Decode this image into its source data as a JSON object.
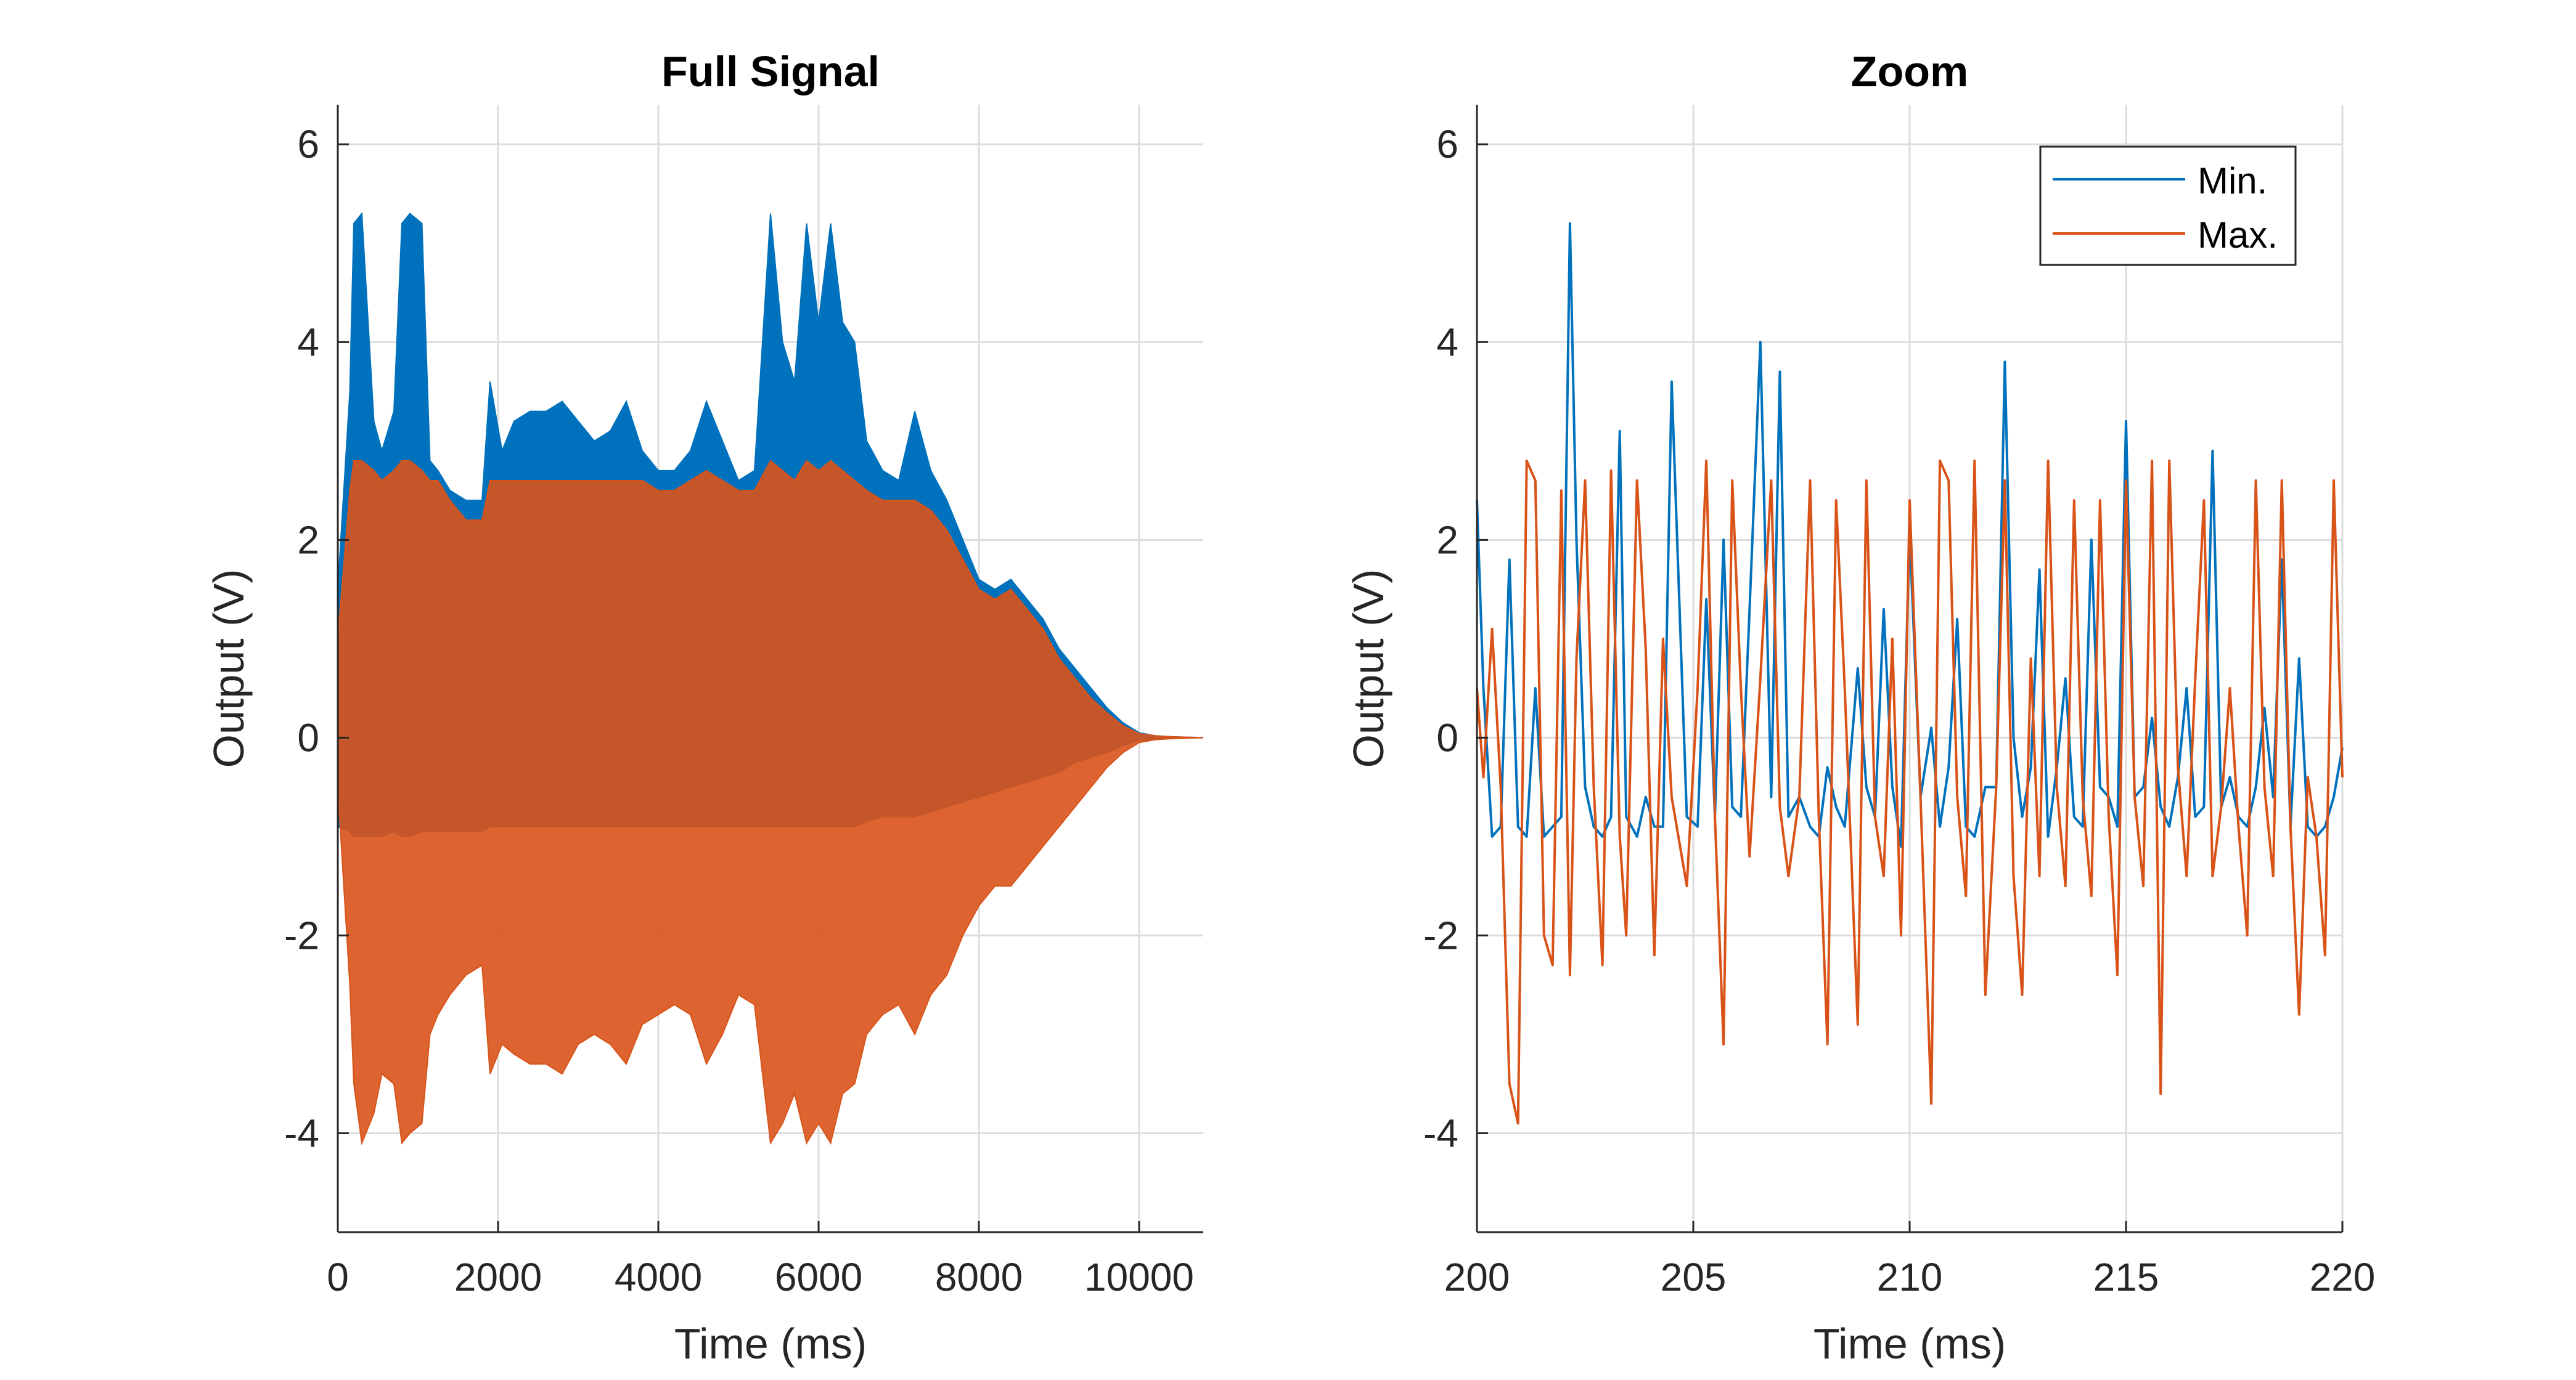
{
  "colors": {
    "series_min": "#0072BD",
    "series_max": "#D95319",
    "grid": "#dcdcdc",
    "axis": "#262626"
  },
  "chart_data": [
    {
      "type": "line",
      "title": "Full Signal",
      "xlabel": "Time (ms)",
      "ylabel": "Output (V)",
      "xlim": [
        0,
        10800
      ],
      "ylim": [
        -5,
        6.4
      ],
      "xticks": [
        0,
        2000,
        4000,
        6000,
        8000,
        10000
      ],
      "xtick_labels": [
        "0",
        "2000",
        "4000",
        "6000",
        "8000",
        "10000"
      ],
      "yticks": [
        -4,
        -2,
        0,
        2,
        4,
        6
      ],
      "ytick_labels": [
        "-4",
        "-2",
        "0",
        "2",
        "4",
        "6"
      ],
      "grid": true,
      "legend": "none",
      "series": [
        {
          "color": "#0072BD",
          "x": [
            0,
            150,
            200,
            300,
            450,
            550,
            700,
            800,
            900,
            1050,
            1150,
            1250,
            1400,
            1600,
            1800,
            1900,
            2050,
            2200,
            2400,
            2600,
            2800,
            3000,
            3200,
            3400,
            3600,
            3800,
            4000,
            4200,
            4400,
            4600,
            4800,
            5000,
            5200,
            5400,
            5550,
            5700,
            5850,
            6000,
            6150,
            6300,
            6450,
            6600,
            6800,
            7000,
            7200,
            7400,
            7600,
            7800,
            8000,
            8200,
            8400,
            8600,
            8800,
            9000,
            9200,
            9400,
            9600,
            9800,
            10000,
            10200,
            10400,
            10800
          ],
          "upper": [
            1.5,
            3.5,
            5.2,
            5.3,
            3.2,
            2.9,
            3.3,
            5.2,
            5.3,
            5.2,
            2.8,
            2.7,
            2.5,
            2.4,
            2.4,
            3.6,
            2.9,
            3.2,
            3.3,
            3.3,
            3.4,
            3.2,
            3.0,
            3.1,
            3.4,
            2.9,
            2.7,
            2.7,
            2.9,
            3.4,
            3.0,
            2.6,
            2.7,
            5.3,
            4.0,
            3.6,
            5.2,
            4.2,
            5.2,
            4.2,
            4.0,
            3.0,
            2.7,
            2.6,
            3.3,
            2.7,
            2.4,
            2.0,
            1.6,
            1.5,
            1.6,
            1.4,
            1.2,
            0.9,
            0.7,
            0.5,
            0.3,
            0.15,
            0.05,
            0.02,
            0.01,
            0.0
          ],
          "lower": [
            -0.9,
            -0.95,
            -1.0,
            -1.0,
            -1.0,
            -1.0,
            -0.95,
            -1.0,
            -1.0,
            -0.95,
            -0.95,
            -0.95,
            -0.95,
            -0.95,
            -0.95,
            -0.9,
            -0.9,
            -0.9,
            -0.9,
            -0.9,
            -0.9,
            -0.9,
            -0.9,
            -0.9,
            -0.9,
            -0.9,
            -0.9,
            -0.9,
            -0.9,
            -0.9,
            -0.9,
            -0.9,
            -0.9,
            -0.9,
            -0.9,
            -0.9,
            -0.9,
            -0.9,
            -0.9,
            -0.9,
            -0.9,
            -0.85,
            -0.8,
            -0.8,
            -0.8,
            -0.75,
            -0.7,
            -0.65,
            -0.6,
            -0.55,
            -0.5,
            -0.45,
            -0.4,
            -0.35,
            -0.25,
            -0.2,
            -0.15,
            -0.08,
            -0.03,
            -0.01,
            0.0,
            0.0
          ]
        },
        {
          "color": "#D95319",
          "x": [
            0,
            150,
            200,
            300,
            450,
            550,
            700,
            800,
            900,
            1050,
            1150,
            1250,
            1400,
            1600,
            1800,
            1900,
            2050,
            2200,
            2400,
            2600,
            2800,
            3000,
            3200,
            3400,
            3600,
            3800,
            4000,
            4200,
            4400,
            4600,
            4800,
            5000,
            5200,
            5400,
            5550,
            5700,
            5850,
            6000,
            6150,
            6300,
            6450,
            6600,
            6800,
            7000,
            7200,
            7400,
            7600,
            7800,
            8000,
            8200,
            8400,
            8600,
            8800,
            9000,
            9200,
            9400,
            9600,
            9800,
            10000,
            10200,
            10400,
            10800
          ],
          "upper": [
            1.0,
            2.5,
            2.8,
            2.8,
            2.7,
            2.6,
            2.7,
            2.8,
            2.8,
            2.7,
            2.6,
            2.6,
            2.4,
            2.2,
            2.2,
            2.6,
            2.6,
            2.6,
            2.6,
            2.6,
            2.6,
            2.6,
            2.6,
            2.6,
            2.6,
            2.6,
            2.5,
            2.5,
            2.6,
            2.7,
            2.6,
            2.5,
            2.5,
            2.8,
            2.7,
            2.6,
            2.8,
            2.7,
            2.8,
            2.7,
            2.6,
            2.5,
            2.4,
            2.4,
            2.4,
            2.3,
            2.1,
            1.8,
            1.5,
            1.4,
            1.5,
            1.3,
            1.1,
            0.8,
            0.6,
            0.4,
            0.25,
            0.12,
            0.04,
            0.02,
            0.01,
            0.0
          ],
          "lower": [
            -0.5,
            -2.5,
            -3.5,
            -4.1,
            -3.8,
            -3.4,
            -3.5,
            -4.1,
            -4.0,
            -3.9,
            -3.0,
            -2.8,
            -2.6,
            -2.4,
            -2.3,
            -3.4,
            -3.1,
            -3.2,
            -3.3,
            -3.3,
            -3.4,
            -3.1,
            -3.0,
            -3.1,
            -3.3,
            -2.9,
            -2.8,
            -2.7,
            -2.8,
            -3.3,
            -3.0,
            -2.6,
            -2.7,
            -4.1,
            -3.9,
            -3.6,
            -4.1,
            -3.9,
            -4.1,
            -3.6,
            -3.5,
            -3.0,
            -2.8,
            -2.7,
            -3.0,
            -2.6,
            -2.4,
            -2.0,
            -1.7,
            -1.5,
            -1.5,
            -1.3,
            -1.1,
            -0.9,
            -0.7,
            -0.5,
            -0.3,
            -0.15,
            -0.05,
            -0.02,
            -0.01,
            0.0
          ]
        }
      ]
    },
    {
      "type": "line",
      "title": "Zoom",
      "xlabel": "Time (ms)",
      "ylabel": "Output (V)",
      "xlim": [
        200,
        220
      ],
      "ylim": [
        -5,
        6.4
      ],
      "xticks": [
        200,
        205,
        210,
        215,
        220
      ],
      "xtick_labels": [
        "200",
        "205",
        "210",
        "215",
        "220"
      ],
      "yticks": [
        -4,
        -2,
        0,
        2,
        4,
        6
      ],
      "ytick_labels": [
        "-4",
        "-2",
        "0",
        "2",
        "4",
        "6"
      ],
      "grid": true,
      "legend": "top-right",
      "series": [
        {
          "name": "Min.",
          "color": "#0072BD",
          "x": [
            200.0,
            200.15,
            200.35,
            200.55,
            200.75,
            200.95,
            201.15,
            201.35,
            201.55,
            201.75,
            201.95,
            202.15,
            202.3,
            202.5,
            202.7,
            202.9,
            203.1,
            203.3,
            203.45,
            203.7,
            203.9,
            204.1,
            204.3,
            204.5,
            204.85,
            205.1,
            205.3,
            205.5,
            205.7,
            205.9,
            206.1,
            206.3,
            206.55,
            206.8,
            207.0,
            207.2,
            207.45,
            207.7,
            207.9,
            208.1,
            208.3,
            208.5,
            208.8,
            209.0,
            209.2,
            209.4,
            209.6,
            209.8,
            210.0,
            210.25,
            210.5,
            210.7,
            210.9,
            211.1,
            211.3,
            211.5,
            211.75,
            212.0,
            212.2,
            212.4,
            212.6,
            212.8,
            213.0,
            213.2,
            213.4,
            213.6,
            213.8,
            214.0,
            214.2,
            214.4,
            214.6,
            214.8,
            215.0,
            215.2,
            215.4,
            215.6,
            215.8,
            216.0,
            216.2,
            216.4,
            216.6,
            216.8,
            217.0,
            217.2,
            217.4,
            217.6,
            217.8,
            218.0,
            218.2,
            218.4,
            218.6,
            218.8,
            219.0,
            219.2,
            219.4,
            219.6,
            219.8,
            220.0
          ],
          "y": [
            2.4,
            0.5,
            -1.0,
            -0.9,
            1.8,
            -0.9,
            -1.0,
            0.5,
            -1.0,
            -0.9,
            -0.8,
            5.2,
            2.0,
            -0.5,
            -0.9,
            -1.0,
            -0.8,
            3.1,
            -0.8,
            -1.0,
            -0.6,
            -0.9,
            -0.9,
            3.6,
            -0.8,
            -0.9,
            1.4,
            -0.8,
            2.0,
            -0.7,
            -0.8,
            1.3,
            4.0,
            -0.6,
            3.7,
            -0.8,
            -0.6,
            -0.9,
            -1.0,
            -0.3,
            -0.7,
            -0.9,
            0.7,
            -0.5,
            -0.8,
            1.3,
            -0.5,
            -1.1,
            2.1,
            -0.6,
            0.1,
            -0.9,
            -0.3,
            1.2,
            -0.9,
            -1.0,
            -0.5,
            -0.5,
            3.8,
            0.0,
            -0.8,
            -0.3,
            1.7,
            -1.0,
            -0.3,
            0.6,
            -0.8,
            -0.9,
            2.0,
            -0.5,
            -0.6,
            -0.9,
            3.2,
            -0.6,
            -0.5,
            0.2,
            -0.7,
            -0.9,
            -0.4,
            0.5,
            -0.8,
            -0.7,
            2.9,
            -0.7,
            -0.4,
            -0.8,
            -0.9,
            -0.5,
            0.3,
            -0.6,
            1.8,
            -0.9,
            0.8,
            -0.9,
            -1.0,
            -0.9,
            -0.6,
            -0.1
          ]
        },
        {
          "name": "Max.",
          "color": "#D95319",
          "x": [
            200.0,
            200.15,
            200.35,
            200.55,
            200.75,
            200.95,
            201.15,
            201.35,
            201.55,
            201.75,
            201.95,
            202.15,
            202.3,
            202.5,
            202.7,
            202.9,
            203.1,
            203.3,
            203.45,
            203.7,
            203.9,
            204.1,
            204.3,
            204.5,
            204.85,
            205.1,
            205.3,
            205.5,
            205.7,
            205.9,
            206.1,
            206.3,
            206.55,
            206.8,
            207.0,
            207.2,
            207.45,
            207.7,
            207.9,
            208.1,
            208.3,
            208.5,
            208.8,
            209.0,
            209.2,
            209.4,
            209.6,
            209.8,
            210.0,
            210.25,
            210.5,
            210.7,
            210.9,
            211.1,
            211.3,
            211.5,
            211.75,
            212.0,
            212.2,
            212.4,
            212.6,
            212.8,
            213.0,
            213.2,
            213.4,
            213.6,
            213.8,
            214.0,
            214.2,
            214.4,
            214.6,
            214.8,
            215.0,
            215.2,
            215.4,
            215.6,
            215.8,
            216.0,
            216.2,
            216.4,
            216.6,
            216.8,
            217.0,
            217.2,
            217.4,
            217.6,
            217.8,
            218.0,
            218.2,
            218.4,
            218.6,
            218.8,
            219.0,
            219.2,
            219.4,
            219.6,
            219.8,
            220.0
          ],
          "y": [
            0.5,
            -0.4,
            1.1,
            -0.5,
            -3.5,
            -3.9,
            2.8,
            2.6,
            -2.0,
            -2.3,
            2.5,
            -2.4,
            0.8,
            2.6,
            -0.5,
            -2.3,
            2.7,
            -1.0,
            -2.0,
            2.6,
            0.9,
            -2.2,
            1.0,
            -0.6,
            -1.5,
            0.5,
            2.8,
            -0.8,
            -3.1,
            2.6,
            0.5,
            -1.2,
            0.6,
            2.6,
            -0.7,
            -1.4,
            -0.6,
            2.6,
            -0.8,
            -3.1,
            2.4,
            0.5,
            -2.9,
            2.6,
            -0.8,
            -1.4,
            1.0,
            -2.0,
            2.4,
            -0.6,
            -3.7,
            2.8,
            2.6,
            -0.6,
            -1.6,
            2.8,
            -2.6,
            -0.5,
            2.6,
            -1.4,
            -2.6,
            0.8,
            -1.4,
            2.8,
            -0.5,
            -1.5,
            2.4,
            -0.6,
            -1.6,
            2.4,
            -0.8,
            -2.4,
            2.6,
            -0.6,
            -1.5,
            2.8,
            -3.6,
            2.8,
            -0.3,
            -1.4,
            0.6,
            2.4,
            -1.4,
            -0.7,
            0.5,
            -0.9,
            -2.0,
            2.6,
            -0.5,
            -1.4,
            2.6,
            -0.9,
            -2.8,
            -0.4,
            -1.0,
            -2.2,
            2.6,
            -0.4
          ]
        }
      ]
    }
  ]
}
